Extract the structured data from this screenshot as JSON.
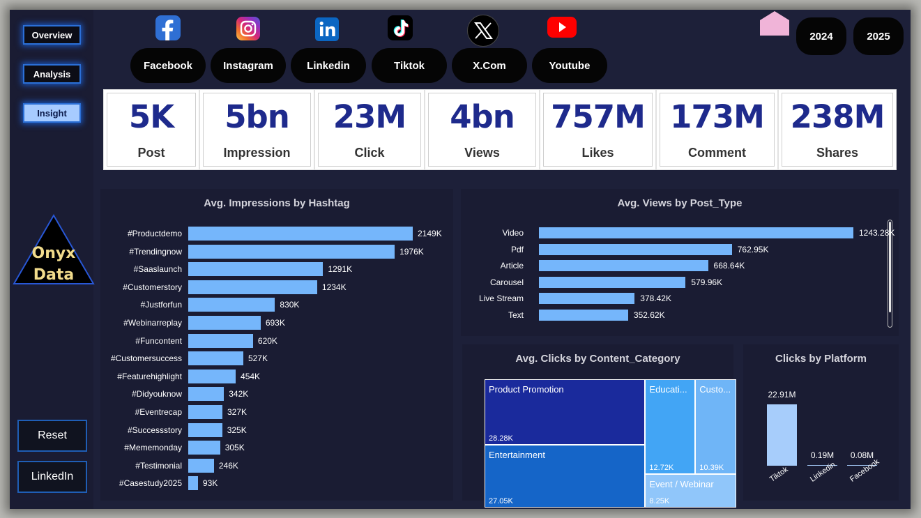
{
  "nav": {
    "overview": "Overview",
    "analysis": "Analysis",
    "insight": "Insight"
  },
  "logo": {
    "line1": "Onyx",
    "line2": "Data"
  },
  "side_buttons": {
    "reset": "Reset",
    "linkedin": "LinkedIn"
  },
  "platforms": [
    {
      "label": "Facebook",
      "icon": "facebook-icon"
    },
    {
      "label": "Instagram",
      "icon": "instagram-icon"
    },
    {
      "label": "Linkedin",
      "icon": "linkedin-icon"
    },
    {
      "label": "Tiktok",
      "icon": "tiktok-icon"
    },
    {
      "label": "X.Com",
      "icon": "x-icon"
    },
    {
      "label": "Youtube",
      "icon": "youtube-icon"
    }
  ],
  "years": [
    "2024",
    "2025"
  ],
  "kpis": [
    {
      "value": "5K",
      "label": "Post"
    },
    {
      "value": "5bn",
      "label": "Impression"
    },
    {
      "value": "23M",
      "label": "Click"
    },
    {
      "value": "4bn",
      "label": "Views"
    },
    {
      "value": "757M",
      "label": "Likes"
    },
    {
      "value": "173M",
      "label": "Comment"
    },
    {
      "value": "238M",
      "label": "Shares"
    }
  ],
  "colors": {
    "background": "#1d2039",
    "panel": "#1a1c33",
    "bar": "#75b6fb",
    "kpi_text": "#1e2a8c",
    "nav_active": "#a7cbff"
  },
  "charts": {
    "hashtag": {
      "title": "Avg. Impressions by Hashtag"
    },
    "post_type": {
      "title": "Avg. Views by Post_Type"
    },
    "content_category": {
      "title": "Avg. Clicks by Content_Category"
    },
    "platform_clicks": {
      "title": "Clicks by Platform"
    }
  },
  "chart_data": [
    {
      "type": "bar",
      "orientation": "horizontal",
      "title": "Avg. Impressions by Hashtag",
      "categories": [
        "#Productdemo",
        "#Trendingnow",
        "#Saaslaunch",
        "#Customerstory",
        "#Justforfun",
        "#Webinarreplay",
        "#Funcontent",
        "#Customersuccess",
        "#Featurehighlight",
        "#Didyouknow",
        "#Eventrecap",
        "#Successstory",
        "#Mememonday",
        "#Testimonial",
        "#Casestudy2025"
      ],
      "values": [
        2149,
        1976,
        1291,
        1234,
        830,
        693,
        620,
        527,
        454,
        342,
        327,
        325,
        305,
        246,
        93
      ],
      "labels": [
        "2149K",
        "1976K",
        "1291K",
        "1234K",
        "830K",
        "693K",
        "620K",
        "527K",
        "454K",
        "342K",
        "327K",
        "325K",
        "305K",
        "246K",
        "93K"
      ],
      "unit": "K"
    },
    {
      "type": "bar",
      "orientation": "horizontal",
      "title": "Avg. Views by Post_Type",
      "categories": [
        "Video",
        "Pdf",
        "Article",
        "Carousel",
        "Live Stream",
        "Text"
      ],
      "values": [
        1243.28,
        762.95,
        668.64,
        579.96,
        378.42,
        352.62
      ],
      "labels": [
        "1243.28K",
        "762.95K",
        "668.64K",
        "579.96K",
        "378.42K",
        "352.62K"
      ],
      "unit": "K"
    },
    {
      "type": "treemap",
      "title": "Avg. Clicks by Content_Category",
      "categories": [
        "Product Promotion",
        "Entertainment",
        "Educati...",
        "Custo...",
        "Event / Webinar"
      ],
      "values": [
        28.28,
        27.05,
        12.72,
        10.39,
        8.25
      ],
      "labels": [
        "28.28K",
        "27.05K",
        "12.72K",
        "10.39K",
        "8.25K"
      ],
      "unit": "K"
    },
    {
      "type": "bar",
      "orientation": "vertical",
      "title": "Clicks by Platform",
      "categories": [
        "Tiktok",
        "Linkedin",
        "Facebook"
      ],
      "values": [
        22.91,
        0.19,
        0.08
      ],
      "labels": [
        "22.91M",
        "0.19M",
        "0.08M"
      ],
      "unit": "M"
    }
  ]
}
